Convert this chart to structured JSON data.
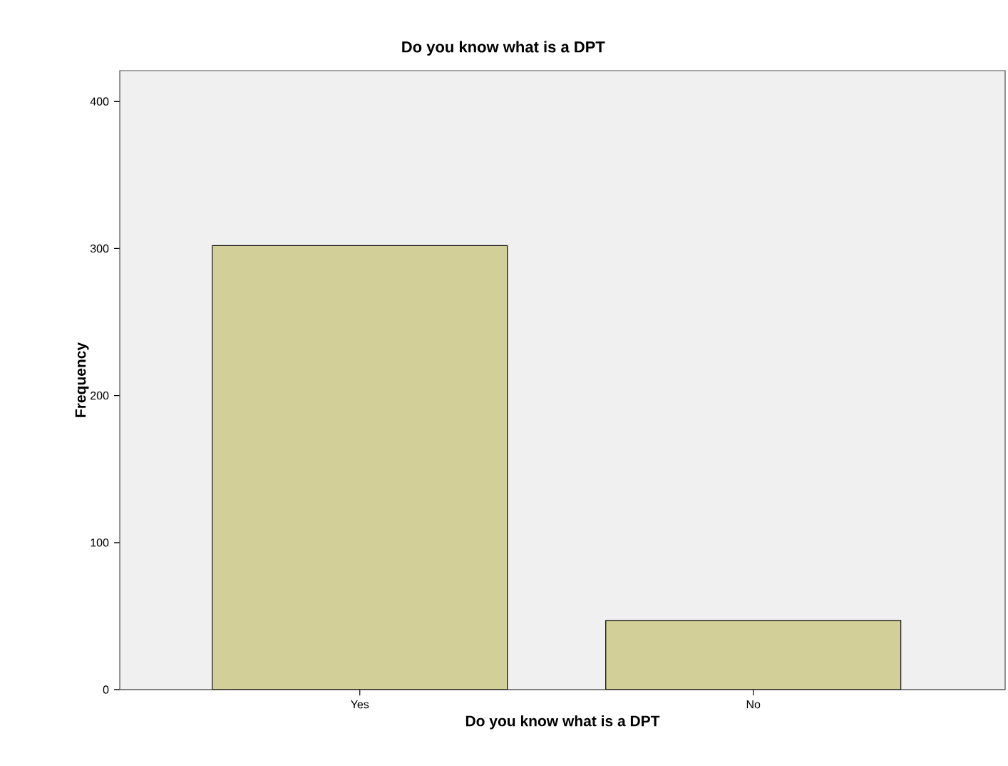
{
  "chart_data": {
    "type": "bar",
    "title": "Do you know what is a DPT",
    "xlabel": "Do you know what is a DPT",
    "ylabel": "Frequency",
    "categories": [
      "Yes",
      "No"
    ],
    "values": [
      302,
      47
    ],
    "color": "#d3cf98",
    "ylim": [
      0,
      421
    ],
    "yticks": [
      0,
      100,
      200,
      300,
      400
    ],
    "grid": false
  }
}
